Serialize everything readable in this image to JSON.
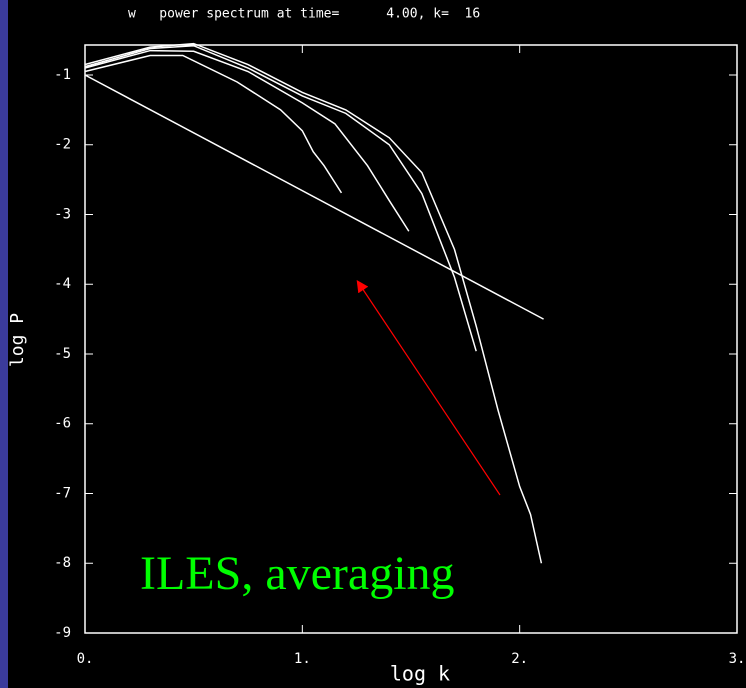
{
  "chart_data": {
    "type": "line",
    "title": "w   power spectrum at time=      4.00, k=  16",
    "x_label": "log k",
    "y_label": "log P",
    "annotation": "ILES, averaging",
    "xlim": [
      0,
      3
    ],
    "ylim": [
      -9,
      -0.57
    ],
    "xticks": [
      {
        "value": 0,
        "label": "0."
      },
      {
        "value": 1,
        "label": "1."
      },
      {
        "value": 2,
        "label": "2."
      },
      {
        "value": 3,
        "label": "3."
      }
    ],
    "yticks": [
      -1,
      -2,
      -3,
      -4,
      -5,
      -6,
      -7,
      -8,
      -9
    ],
    "series": [
      {
        "color": "#ffffff",
        "x": [
          0,
          2.11
        ],
        "y": [
          -1,
          -4.5
        ]
      },
      {
        "color": "#ffffff",
        "x": [
          0,
          0.3,
          0.45,
          0.7,
          0.9,
          1.0,
          1.05,
          1.1,
          1.18
        ],
        "y": [
          -0.95,
          -0.72,
          -0.72,
          -1.1,
          -1.5,
          -1.8,
          -2.1,
          -2.3,
          -2.69
        ]
      },
      {
        "color": "#ffffff",
        "x": [
          0,
          0.3,
          0.5,
          0.75,
          1.0,
          1.15,
          1.3,
          1.4,
          1.49
        ],
        "y": [
          -0.9,
          -0.65,
          -0.66,
          -0.95,
          -1.4,
          -1.7,
          -2.3,
          -2.8,
          -3.24
        ]
      },
      {
        "color": "#ffffff",
        "x": [
          0,
          0.3,
          0.5,
          0.75,
          1.0,
          1.2,
          1.4,
          1.55,
          1.7,
          1.8
        ],
        "y": [
          -0.88,
          -0.62,
          -0.58,
          -0.9,
          -1.3,
          -1.55,
          -2.0,
          -2.7,
          -3.9,
          -4.96
        ]
      },
      {
        "color": "#ffffff",
        "x": [
          0,
          0.3,
          0.5,
          0.75,
          1.0,
          1.2,
          1.4,
          1.55,
          1.7,
          1.8,
          1.9,
          2.0,
          2.05,
          2.1
        ],
        "y": [
          -0.85,
          -0.6,
          -0.55,
          -0.85,
          -1.25,
          -1.5,
          -1.9,
          -2.4,
          -3.5,
          -4.6,
          -5.8,
          -6.9,
          -7.3,
          -8.0
        ]
      }
    ]
  }
}
